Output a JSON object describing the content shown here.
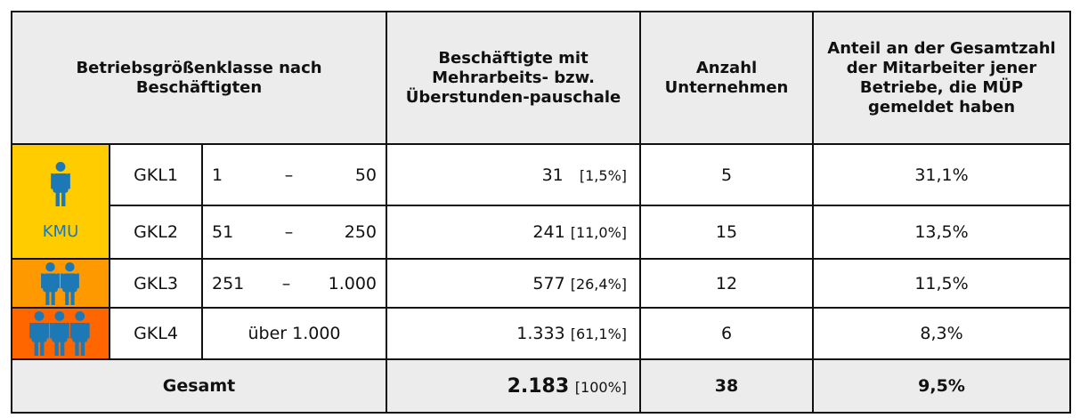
{
  "header": {
    "class": "Betriebsgrößenklasse nach Beschäftigten",
    "employees": "Beschäftigte mit Mehrarbeits- bzw. Überstunden-pauschale",
    "companies": "Anzahl Unternehmen",
    "share": "Anteil an der Gesamtzahl der Mitarbeiter jener Betriebe, die MÜP gemeldet haben"
  },
  "kmu": "KMU",
  "rows": [
    {
      "gkl": "GKL1",
      "range": [
        "1",
        "–",
        "50"
      ],
      "employees": "31",
      "employees_share": "[1,5%]",
      "companies": "5",
      "share": "31,1%"
    },
    {
      "gkl": "GKL2",
      "range": [
        "51",
        "–",
        "250"
      ],
      "employees": "241",
      "employees_share": "[11,0%]",
      "companies": "15",
      "share": "13,5%"
    },
    {
      "gkl": "GKL3",
      "range": [
        "251",
        "–",
        "1.000"
      ],
      "employees": "577",
      "employees_share": "[26,4%]",
      "companies": "12",
      "share": "11,5%"
    },
    {
      "gkl": "GKL4",
      "range": [
        "über 1.000"
      ],
      "employees": "1.333",
      "employees_share": "[61,1%]",
      "companies": "6",
      "share": "8,3%"
    }
  ],
  "total": {
    "label": "Gesamt",
    "employees": "2.183",
    "employees_share": "[100%]",
    "companies": "38",
    "share": "9,5%"
  }
}
